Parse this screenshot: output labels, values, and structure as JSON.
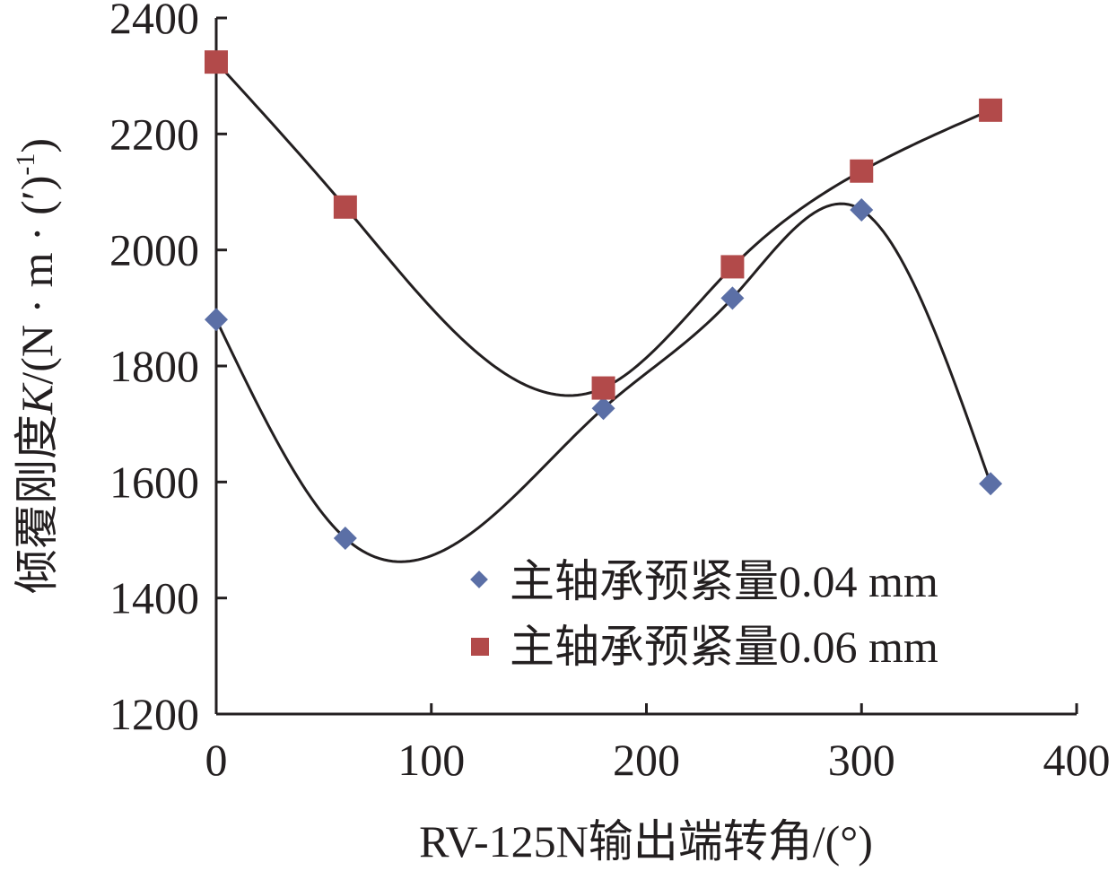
{
  "chart_data": {
    "type": "scatter",
    "xlabel": "RV-125N输出端转角/(°)",
    "ylabel_parts": {
      "prefix": "倾覆刚度",
      "var": "K",
      "suffix": "/(N · m · (′)",
      "exp": "-1",
      "close": ")"
    },
    "xlim": [
      0,
      400
    ],
    "ylim": [
      1200,
      2400
    ],
    "x_ticks": [
      "0",
      "100",
      "200",
      "300",
      "400"
    ],
    "y_ticks": [
      "1200",
      "1400",
      "1600",
      "1800",
      "2000",
      "2200",
      "2400"
    ],
    "x": [
      0,
      60,
      180,
      240,
      300,
      360
    ],
    "grid": false,
    "legend_position": "bottom-right",
    "series": [
      {
        "name": "主轴承预紧量0.04 mm",
        "marker": "diamond",
        "color": "#5b6fa6",
        "values": [
          1880,
          1503,
          1727,
          1917,
          2069,
          1597
        ],
        "trendline": "smooth"
      },
      {
        "name": "主轴承预紧量0.06 mm",
        "marker": "square",
        "color": "#b24a4a",
        "values": [
          2324,
          2074,
          1762,
          1971,
          2136,
          2241
        ],
        "trendline": "smooth"
      }
    ],
    "trend_color": "#231f20"
  }
}
